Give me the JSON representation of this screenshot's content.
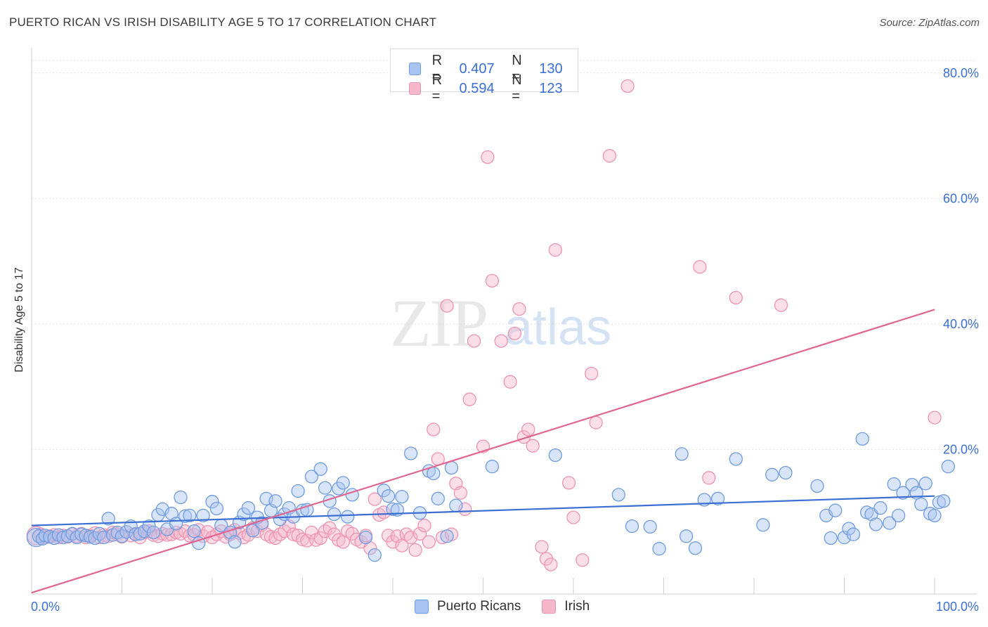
{
  "title": "PUERTO RICAN VS IRISH DISABILITY AGE 5 TO 17 CORRELATION CHART",
  "source": "Source: ZipAtlas.com",
  "watermark": {
    "zip": "ZIP",
    "atlas": "atlas"
  },
  "colors": {
    "blue": "#3b6fd4",
    "blue_fill": "#a9c4f0",
    "blue_stroke": "#6f9be0",
    "pink": "#e0668f",
    "pink_fill": "#f5b8cb",
    "pink_stroke": "#ee93b0",
    "axis_text": "#3b6fd4"
  },
  "legend": {
    "rows": [
      {
        "r_label": "R = ",
        "r_value": "0.407",
        "n_label": "N = ",
        "n_value": "130"
      },
      {
        "r_label": "R = ",
        "r_value": "0.594",
        "n_label": "N = ",
        "n_value": "123"
      }
    ]
  },
  "bottom_legend": [
    "Puerto Ricans",
    "Irish"
  ],
  "chart_data": {
    "type": "scatter",
    "title": "PUERTO RICAN VS IRISH DISABILITY AGE 5 TO 17 CORRELATION CHART",
    "xlabel": "",
    "ylabel": "Disability Age 5 to 17",
    "xlim": [
      0,
      100
    ],
    "ylim": [
      -3,
      83
    ],
    "x_tick_labels": [
      "0.0%",
      "100.0%"
    ],
    "y_tick_labels": [
      "20.0%",
      "40.0%",
      "60.0%",
      "80.0%"
    ],
    "y_ticks": [
      20,
      40,
      60,
      80
    ],
    "legend_position": "top-center",
    "series": [
      {
        "name": "Puerto Ricans",
        "trend": {
          "x": [
            0,
            100
          ],
          "y": [
            7.9,
            12.6
          ]
        },
        "points": [
          [
            0.5,
            6.0
          ],
          [
            0.8,
            6.2
          ],
          [
            1.2,
            5.8
          ],
          [
            1.5,
            6.3
          ],
          [
            2,
            6.1
          ],
          [
            2.5,
            5.9
          ],
          [
            3,
            6.4
          ],
          [
            3.5,
            6.0
          ],
          [
            4,
            6.2
          ],
          [
            4.5,
            6.6
          ],
          [
            5,
            6.0
          ],
          [
            5.5,
            6.5
          ],
          [
            6,
            6.3
          ],
          [
            6.5,
            6.1
          ],
          [
            7,
            5.9
          ],
          [
            7.5,
            6.6
          ],
          [
            8,
            6.0
          ],
          [
            8.5,
            9.0
          ],
          [
            9,
            6.4
          ],
          [
            9.5,
            6.8
          ],
          [
            10,
            6.2
          ],
          [
            10.5,
            6.9
          ],
          [
            11,
            7.8
          ],
          [
            11.5,
            6.5
          ],
          [
            12,
            6.6
          ],
          [
            12.5,
            7.0
          ],
          [
            13,
            7.8
          ],
          [
            13.5,
            6.8
          ],
          [
            14,
            9.6
          ],
          [
            14.5,
            10.5
          ],
          [
            15,
            7.3
          ],
          [
            15.5,
            9.8
          ],
          [
            16,
            8.2
          ],
          [
            16.5,
            12.4
          ],
          [
            17,
            9.4
          ],
          [
            17.5,
            9.5
          ],
          [
            18,
            7.0
          ],
          [
            18.5,
            5.1
          ],
          [
            19,
            9.5
          ],
          [
            20,
            11.7
          ],
          [
            20.5,
            10.6
          ],
          [
            21,
            7.9
          ],
          [
            22,
            6.8
          ],
          [
            22.5,
            5.3
          ],
          [
            23,
            8.4
          ],
          [
            23.5,
            9.7
          ],
          [
            24,
            10.7
          ],
          [
            24.5,
            7.1
          ],
          [
            25,
            9.2
          ],
          [
            25.5,
            8.3
          ],
          [
            26,
            12.2
          ],
          [
            26.5,
            10.3
          ],
          [
            27,
            11.8
          ],
          [
            27.5,
            8.9
          ],
          [
            28,
            9.7
          ],
          [
            28.5,
            10.7
          ],
          [
            29,
            9.3
          ],
          [
            29.5,
            13.4
          ],
          [
            30,
            10.3
          ],
          [
            30.5,
            10.4
          ],
          [
            31,
            15.7
          ],
          [
            32,
            16.9
          ],
          [
            32.5,
            13.9
          ],
          [
            33,
            11.8
          ],
          [
            33.5,
            9.7
          ],
          [
            34,
            13.8
          ],
          [
            34.5,
            14.7
          ],
          [
            35,
            9.3
          ],
          [
            35.5,
            12.8
          ],
          [
            37,
            6.0
          ],
          [
            38,
            3.2
          ],
          [
            39,
            13.5
          ],
          [
            39.5,
            12.6
          ],
          [
            40,
            10.5
          ],
          [
            40.5,
            10.4
          ],
          [
            41,
            12.5
          ],
          [
            42,
            19.4
          ],
          [
            43,
            9.9
          ],
          [
            44,
            16.6
          ],
          [
            44.5,
            16.2
          ],
          [
            45,
            12.2
          ],
          [
            46,
            6.2
          ],
          [
            46.5,
            17.1
          ],
          [
            47,
            11.1
          ],
          [
            51,
            17.3
          ],
          [
            58,
            19.1
          ],
          [
            65,
            12.8
          ],
          [
            66.5,
            7.8
          ],
          [
            68.5,
            7.7
          ],
          [
            69.5,
            4.2
          ],
          [
            72,
            19.3
          ],
          [
            72.5,
            6.2
          ],
          [
            73.5,
            4.3
          ],
          [
            74.5,
            12.0
          ],
          [
            76,
            12.2
          ],
          [
            78,
            18.5
          ],
          [
            81,
            8.0
          ],
          [
            82,
            16.0
          ],
          [
            83.5,
            16.3
          ],
          [
            87,
            14.2
          ],
          [
            88,
            9.5
          ],
          [
            88.5,
            5.9
          ],
          [
            89,
            10.3
          ],
          [
            90,
            6.0
          ],
          [
            90.5,
            7.4
          ],
          [
            91,
            6.5
          ],
          [
            92,
            21.7
          ],
          [
            92.5,
            10.0
          ],
          [
            93,
            9.7
          ],
          [
            93.5,
            8.1
          ],
          [
            94,
            10.7
          ],
          [
            95,
            8.3
          ],
          [
            95.5,
            14.5
          ],
          [
            96,
            9.5
          ],
          [
            96.5,
            13.1
          ],
          [
            97.5,
            14.4
          ],
          [
            98,
            13.1
          ],
          [
            98.5,
            11.3
          ],
          [
            99,
            14.6
          ],
          [
            99.5,
            9.8
          ],
          [
            100,
            9.5
          ],
          [
            100.5,
            11.6
          ],
          [
            101,
            11.8
          ],
          [
            101.5,
            17.3
          ]
        ]
      },
      {
        "name": "Irish",
        "trend": {
          "x": [
            0,
            100
          ],
          "y": [
            -2.8,
            42.3
          ]
        },
        "points": [
          [
            0.5,
            6.3
          ],
          [
            1,
            6.5
          ],
          [
            1.5,
            6.0
          ],
          [
            2,
            6.2
          ],
          [
            2.5,
            6.4
          ],
          [
            3,
            6.0
          ],
          [
            3.5,
            6.3
          ],
          [
            4,
            6.1
          ],
          [
            4.5,
            6.5
          ],
          [
            5,
            6.2
          ],
          [
            5.5,
            6.6
          ],
          [
            6,
            6.0
          ],
          [
            6.5,
            6.3
          ],
          [
            7,
            6.7
          ],
          [
            7.5,
            6.0
          ],
          [
            8,
            6.4
          ],
          [
            8.5,
            6.2
          ],
          [
            9,
            6.8
          ],
          [
            9.5,
            6.5
          ],
          [
            10,
            6.1
          ],
          [
            10.5,
            6.9
          ],
          [
            11,
            6.3
          ],
          [
            11.5,
            6.6
          ],
          [
            12,
            6.0
          ],
          [
            12.5,
            6.8
          ],
          [
            13,
            7.0
          ],
          [
            13.5,
            6.4
          ],
          [
            14,
            6.2
          ],
          [
            14.5,
            6.6
          ],
          [
            15,
            6.4
          ],
          [
            15.5,
            6.5
          ],
          [
            16,
            6.8
          ],
          [
            16.5,
            6.6
          ],
          [
            17,
            7.0
          ],
          [
            17.5,
            6.3
          ],
          [
            18,
            6.4
          ],
          [
            18.5,
            7.2
          ],
          [
            19,
            6.2
          ],
          [
            19.5,
            6.9
          ],
          [
            20,
            6.0
          ],
          [
            20.5,
            6.5
          ],
          [
            21,
            7.0
          ],
          [
            21.5,
            6.1
          ],
          [
            22,
            6.5
          ],
          [
            22.5,
            7.2
          ],
          [
            23,
            6.7
          ],
          [
            23.5,
            6.0
          ],
          [
            24,
            6.4
          ],
          [
            24.5,
            7.5
          ],
          [
            25,
            7.0
          ],
          [
            25.5,
            8.0
          ],
          [
            26,
            6.5
          ],
          [
            26.5,
            6.1
          ],
          [
            27,
            5.9
          ],
          [
            27.5,
            6.5
          ],
          [
            28,
            7.0
          ],
          [
            28.5,
            7.8
          ],
          [
            29,
            6.5
          ],
          [
            29.5,
            6.3
          ],
          [
            30,
            5.7
          ],
          [
            30.5,
            5.5
          ],
          [
            31,
            6.8
          ],
          [
            31.5,
            5.6
          ],
          [
            32,
            5.9
          ],
          [
            32.5,
            7.0
          ],
          [
            33,
            7.5
          ],
          [
            33.5,
            6.5
          ],
          [
            34,
            5.6
          ],
          [
            34.5,
            5.3
          ],
          [
            35,
            7.0
          ],
          [
            35.5,
            6.6
          ],
          [
            36,
            5.7
          ],
          [
            36.5,
            5.3
          ],
          [
            37,
            6.3
          ],
          [
            37.5,
            4.3
          ],
          [
            38,
            12.1
          ],
          [
            38.5,
            9.6
          ],
          [
            39,
            10.0
          ],
          [
            39.5,
            6.3
          ],
          [
            40,
            5.3
          ],
          [
            40.5,
            6.2
          ],
          [
            41,
            4.7
          ],
          [
            41.5,
            6.5
          ],
          [
            42,
            6.0
          ],
          [
            42.5,
            4.0
          ],
          [
            43,
            6.6
          ],
          [
            43.5,
            7.9
          ],
          [
            44,
            5.3
          ],
          [
            44.5,
            23.2
          ],
          [
            45,
            18.5
          ],
          [
            45.5,
            6.0
          ],
          [
            46,
            42.9
          ],
          [
            46.5,
            6.5
          ],
          [
            47,
            14.6
          ],
          [
            47.5,
            13.1
          ],
          [
            48,
            10.5
          ],
          [
            48.5,
            28.0
          ],
          [
            49,
            37.3
          ],
          [
            50,
            20.5
          ],
          [
            50.5,
            66.6
          ],
          [
            51,
            46.9
          ],
          [
            52,
            37.3
          ],
          [
            53,
            30.8
          ],
          [
            53.5,
            38.5
          ],
          [
            54,
            42.4
          ],
          [
            54.5,
            22.0
          ],
          [
            55,
            23.2
          ],
          [
            55.5,
            20.6
          ],
          [
            56.5,
            4.5
          ],
          [
            57,
            2.6
          ],
          [
            57.5,
            1.7
          ],
          [
            58,
            51.8
          ],
          [
            59.5,
            14.7
          ],
          [
            60,
            9.2
          ],
          [
            61,
            2.4
          ],
          [
            62,
            32.1
          ],
          [
            62.5,
            24.3
          ],
          [
            64,
            66.8
          ],
          [
            66,
            77.9
          ],
          [
            74,
            49.1
          ],
          [
            75,
            15.5
          ],
          [
            78,
            44.2
          ],
          [
            83,
            43.0
          ],
          [
            100,
            25.1
          ]
        ]
      }
    ]
  }
}
